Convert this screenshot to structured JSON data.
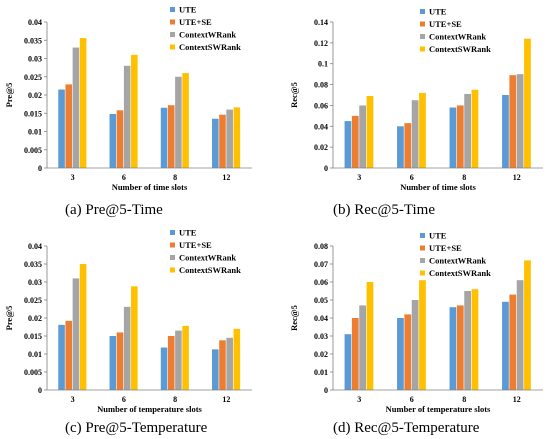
{
  "chart_data": [
    {
      "type": "bar",
      "caption": "(a)   Pre@5-Time",
      "xlabel": "Number of time slots",
      "ylabel": "Pre@5",
      "categories": [
        "3",
        "6",
        "8",
        "12"
      ],
      "ylim": [
        0,
        0.04
      ],
      "yticks": [
        "0",
        "0.005",
        "0.01",
        "0.015",
        "0.02",
        "0.025",
        "0.03",
        "0.035",
        "0.04"
      ],
      "legend_position": "top-right",
      "series": [
        {
          "name": "UTE",
          "color": "#5B9BD5",
          "values": [
            0.0215,
            0.0148,
            0.0165,
            0.0135
          ]
        },
        {
          "name": "UTE+SE",
          "color": "#ED7D31",
          "values": [
            0.0229,
            0.0158,
            0.0172,
            0.0146
          ]
        },
        {
          "name": "ContextWRank",
          "color": "#A5A5A5",
          "values": [
            0.033,
            0.028,
            0.025,
            0.016
          ]
        },
        {
          "name": "ContextSWRank",
          "color": "#FFC000",
          "values": [
            0.0356,
            0.031,
            0.026,
            0.0166
          ]
        }
      ]
    },
    {
      "type": "bar",
      "caption": "(b)   Rec@5-Time",
      "xlabel": "Number of time slots",
      "ylabel": "Rec@5",
      "categories": [
        "3",
        "6",
        "8",
        "12"
      ],
      "ylim": [
        0,
        0.14
      ],
      "yticks": [
        "0",
        "0.02",
        "0.04",
        "0.06",
        "0.08",
        "0.1",
        "0.12",
        "0.14"
      ],
      "legend_position": "top-left",
      "series": [
        {
          "name": "UTE",
          "color": "#5B9BD5",
          "values": [
            0.045,
            0.04,
            0.058,
            0.07
          ]
        },
        {
          "name": "UTE+SE",
          "color": "#ED7D31",
          "values": [
            0.05,
            0.043,
            0.06,
            0.089
          ]
        },
        {
          "name": "ContextWRank",
          "color": "#A5A5A5",
          "values": [
            0.06,
            0.065,
            0.071,
            0.09
          ]
        },
        {
          "name": "ContextSWRank",
          "color": "#FFC000",
          "values": [
            0.069,
            0.072,
            0.075,
            0.124
          ]
        }
      ]
    },
    {
      "type": "bar",
      "caption": "(c)   Pre@5-Temperature",
      "xlabel": "Number of temperature slots",
      "ylabel": "Pre@5",
      "categories": [
        "3",
        "6",
        "8",
        "12"
      ],
      "ylim": [
        0,
        0.04
      ],
      "yticks": [
        "0",
        "0.005",
        "0.01",
        "0.015",
        "0.02",
        "0.025",
        "0.03",
        "0.035",
        "0.04"
      ],
      "legend_position": "top-right",
      "series": [
        {
          "name": "UTE",
          "color": "#5B9BD5",
          "values": [
            0.0181,
            0.015,
            0.0118,
            0.0113
          ]
        },
        {
          "name": "UTE+SE",
          "color": "#ED7D31",
          "values": [
            0.0192,
            0.016,
            0.015,
            0.0138
          ]
        },
        {
          "name": "ContextWRank",
          "color": "#A5A5A5",
          "values": [
            0.031,
            0.0231,
            0.0165,
            0.0145
          ]
        },
        {
          "name": "ContextSWRank",
          "color": "#FFC000",
          "values": [
            0.035,
            0.0288,
            0.0178,
            0.017
          ]
        }
      ]
    },
    {
      "type": "bar",
      "caption": "(d)   Rec@5-Temperature",
      "xlabel": "Number of temperature slots",
      "ylabel": "Rec@5",
      "categories": [
        "3",
        "6",
        "8",
        "12"
      ],
      "ylim": [
        0,
        0.08
      ],
      "yticks": [
        "0",
        "0.01",
        "0.02",
        "0.03",
        "0.04",
        "0.05",
        "0.06",
        "0.07",
        "0.08"
      ],
      "legend_position": "top-left",
      "series": [
        {
          "name": "UTE",
          "color": "#5B9BD5",
          "values": [
            0.031,
            0.04,
            0.046,
            0.049
          ]
        },
        {
          "name": "UTE+SE",
          "color": "#ED7D31",
          "values": [
            0.04,
            0.042,
            0.047,
            0.053
          ]
        },
        {
          "name": "ContextWRank",
          "color": "#A5A5A5",
          "values": [
            0.047,
            0.05,
            0.055,
            0.061
          ]
        },
        {
          "name": "ContextSWRank",
          "color": "#FFC000",
          "values": [
            0.06,
            0.061,
            0.056,
            0.072
          ]
        }
      ]
    }
  ]
}
